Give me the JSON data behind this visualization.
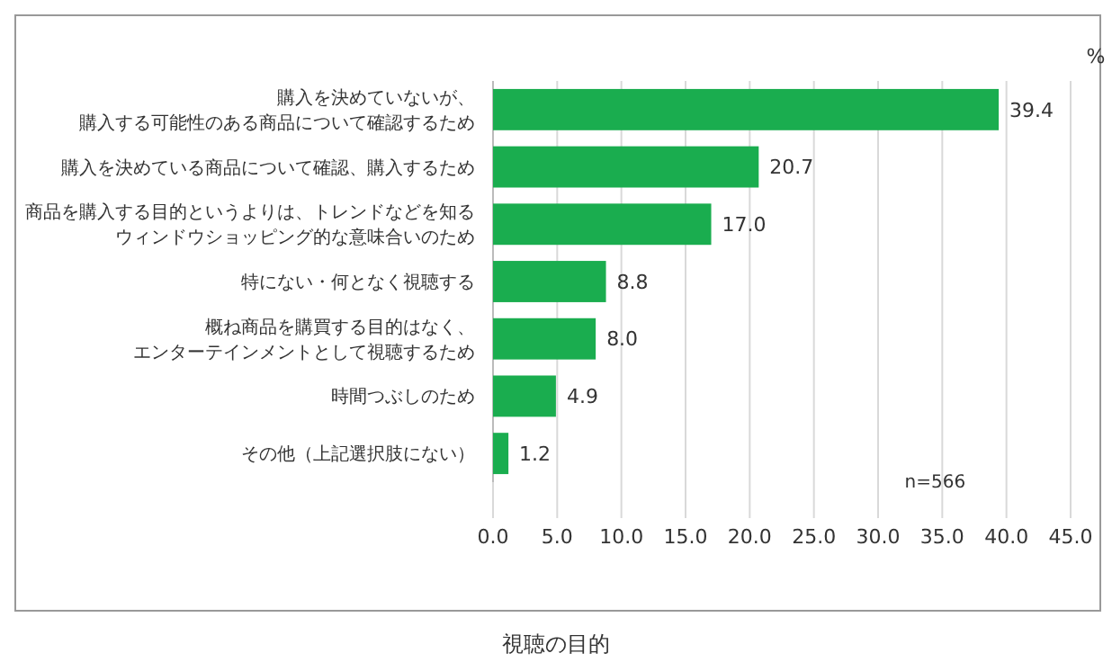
{
  "chart_data": {
    "type": "bar",
    "orientation": "horizontal",
    "title": "視聴の目的",
    "xlabel": "%",
    "categories": [
      "購入を決めていないが、購入する可能性のある商品について確認するため",
      "購入を決めている商品について確認、購入するため",
      "商品を購入する目的というよりは、トレンドなどを知るウィンドウショッピング的な意味合いのため",
      "特にない・何となく視聴する",
      "概ね商品を購買する目的はなく、エンターテインメントとして視聴するため",
      "時間つぶしのため",
      "その他（上記選択肢にない）"
    ],
    "values": [
      39.4,
      20.7,
      17.0,
      8.8,
      8.0,
      4.9,
      1.2
    ],
    "value_labels": [
      "39.4",
      "20.7",
      "17.0",
      "8.8",
      "8.0",
      "4.9",
      "1.2"
    ],
    "color": "#1aad4f",
    "xlim": [
      0,
      45
    ],
    "xticks": [
      {
        "value": 0,
        "label": "0.0"
      },
      {
        "value": 5,
        "label": "5.0"
      },
      {
        "value": 10,
        "label": "10.0"
      },
      {
        "value": 15,
        "label": "15.0"
      },
      {
        "value": 20,
        "label": "20.0"
      },
      {
        "value": 25,
        "label": "25.0"
      },
      {
        "value": 30,
        "label": "30.0"
      },
      {
        "value": 35,
        "label": "35.0"
      },
      {
        "value": 40,
        "label": "40.0"
      },
      {
        "value": 45,
        "label": "45.0"
      }
    ],
    "grid": "x",
    "annotations": [
      "n=566"
    ]
  }
}
